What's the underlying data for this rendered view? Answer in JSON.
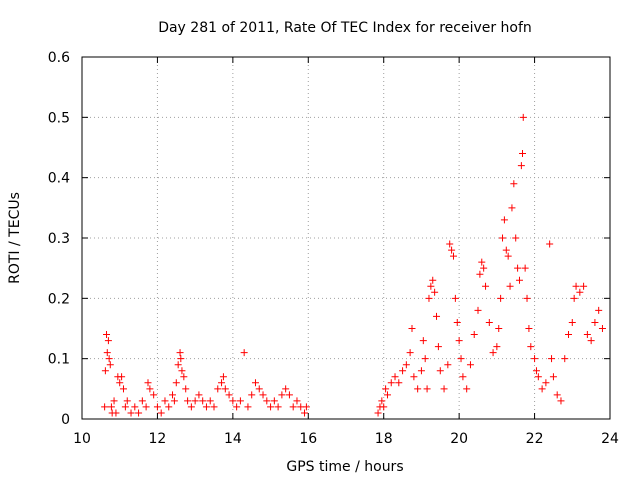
{
  "chart_data": {
    "type": "scatter",
    "title": "Day 281 of 2011, Rate Of TEC Index for receiver hofn",
    "xlabel": "GPS time / hours",
    "ylabel": "ROTI / TECUs",
    "xlim": [
      10,
      24
    ],
    "ylim": [
      0,
      0.6
    ],
    "xticks": [
      "10",
      "12",
      "14",
      "16",
      "18",
      "20",
      "22",
      "24"
    ],
    "yticks": [
      "0",
      "0.1",
      "0.2",
      "0.3",
      "0.4",
      "0.5",
      "0.6"
    ],
    "grid": true,
    "marker": "+",
    "marker_color": "#ff0000",
    "series": [
      {
        "name": "ROTI",
        "points": [
          [
            10.6,
            0.02
          ],
          [
            10.62,
            0.08
          ],
          [
            10.65,
            0.14
          ],
          [
            10.67,
            0.11
          ],
          [
            10.7,
            0.13
          ],
          [
            10.72,
            0.1
          ],
          [
            10.75,
            0.09
          ],
          [
            10.78,
            0.02
          ],
          [
            10.8,
            0.01
          ],
          [
            10.85,
            0.03
          ],
          [
            10.9,
            0.01
          ],
          [
            10.95,
            0.07
          ],
          [
            11.0,
            0.06
          ],
          [
            11.05,
            0.07
          ],
          [
            11.1,
            0.05
          ],
          [
            11.15,
            0.02
          ],
          [
            11.2,
            0.03
          ],
          [
            11.3,
            0.01
          ],
          [
            11.4,
            0.02
          ],
          [
            11.5,
            0.01
          ],
          [
            11.6,
            0.03
          ],
          [
            11.7,
            0.02
          ],
          [
            11.75,
            0.06
          ],
          [
            11.8,
            0.05
          ],
          [
            11.9,
            0.04
          ],
          [
            12.0,
            0.02
          ],
          [
            12.1,
            0.01
          ],
          [
            12.2,
            0.03
          ],
          [
            12.3,
            0.02
          ],
          [
            12.4,
            0.04
          ],
          [
            12.45,
            0.03
          ],
          [
            12.5,
            0.06
          ],
          [
            12.55,
            0.09
          ],
          [
            12.6,
            0.11
          ],
          [
            12.62,
            0.1
          ],
          [
            12.65,
            0.08
          ],
          [
            12.7,
            0.07
          ],
          [
            12.75,
            0.05
          ],
          [
            12.8,
            0.03
          ],
          [
            12.9,
            0.02
          ],
          [
            13.0,
            0.03
          ],
          [
            13.1,
            0.04
          ],
          [
            13.2,
            0.03
          ],
          [
            13.3,
            0.02
          ],
          [
            13.4,
            0.03
          ],
          [
            13.5,
            0.02
          ],
          [
            13.6,
            0.05
          ],
          [
            13.7,
            0.06
          ],
          [
            13.75,
            0.07
          ],
          [
            13.8,
            0.05
          ],
          [
            13.9,
            0.04
          ],
          [
            14.0,
            0.03
          ],
          [
            14.1,
            0.02
          ],
          [
            14.2,
            0.03
          ],
          [
            14.3,
            0.11
          ],
          [
            14.4,
            0.02
          ],
          [
            14.5,
            0.04
          ],
          [
            14.6,
            0.06
          ],
          [
            14.7,
            0.05
          ],
          [
            14.8,
            0.04
          ],
          [
            14.9,
            0.03
          ],
          [
            15.0,
            0.02
          ],
          [
            15.1,
            0.03
          ],
          [
            15.2,
            0.02
          ],
          [
            15.3,
            0.04
          ],
          [
            15.4,
            0.05
          ],
          [
            15.5,
            0.04
          ],
          [
            15.6,
            0.02
          ],
          [
            15.7,
            0.03
          ],
          [
            15.8,
            0.02
          ],
          [
            15.9,
            0.01
          ],
          [
            15.95,
            0.02
          ],
          [
            17.85,
            0.01
          ],
          [
            17.9,
            0.02
          ],
          [
            17.95,
            0.03
          ],
          [
            18.0,
            0.02
          ],
          [
            18.05,
            0.05
          ],
          [
            18.1,
            0.04
          ],
          [
            18.2,
            0.06
          ],
          [
            18.3,
            0.07
          ],
          [
            18.4,
            0.06
          ],
          [
            18.5,
            0.08
          ],
          [
            18.6,
            0.09
          ],
          [
            18.7,
            0.11
          ],
          [
            18.75,
            0.15
          ],
          [
            18.8,
            0.07
          ],
          [
            18.9,
            0.05
          ],
          [
            19.0,
            0.08
          ],
          [
            19.05,
            0.13
          ],
          [
            19.1,
            0.1
          ],
          [
            19.15,
            0.05
          ],
          [
            19.2,
            0.2
          ],
          [
            19.25,
            0.22
          ],
          [
            19.3,
            0.23
          ],
          [
            19.35,
            0.21
          ],
          [
            19.4,
            0.17
          ],
          [
            19.45,
            0.12
          ],
          [
            19.5,
            0.08
          ],
          [
            19.6,
            0.05
          ],
          [
            19.7,
            0.09
          ],
          [
            19.75,
            0.29
          ],
          [
            19.8,
            0.28
          ],
          [
            19.85,
            0.27
          ],
          [
            19.9,
            0.2
          ],
          [
            19.95,
            0.16
          ],
          [
            20.0,
            0.13
          ],
          [
            20.05,
            0.1
          ],
          [
            20.1,
            0.07
          ],
          [
            20.2,
            0.05
          ],
          [
            20.3,
            0.09
          ],
          [
            20.4,
            0.14
          ],
          [
            20.5,
            0.18
          ],
          [
            20.55,
            0.24
          ],
          [
            20.6,
            0.26
          ],
          [
            20.65,
            0.25
          ],
          [
            20.7,
            0.22
          ],
          [
            20.8,
            0.16
          ],
          [
            20.9,
            0.11
          ],
          [
            21.0,
            0.12
          ],
          [
            21.05,
            0.15
          ],
          [
            21.1,
            0.2
          ],
          [
            21.15,
            0.3
          ],
          [
            21.2,
            0.33
          ],
          [
            21.25,
            0.28
          ],
          [
            21.3,
            0.27
          ],
          [
            21.35,
            0.22
          ],
          [
            21.4,
            0.35
          ],
          [
            21.45,
            0.39
          ],
          [
            21.5,
            0.3
          ],
          [
            21.55,
            0.25
          ],
          [
            21.6,
            0.23
          ],
          [
            21.65,
            0.42
          ],
          [
            21.68,
            0.44
          ],
          [
            21.7,
            0.5
          ],
          [
            21.75,
            0.25
          ],
          [
            21.8,
            0.2
          ],
          [
            21.85,
            0.15
          ],
          [
            21.9,
            0.12
          ],
          [
            22.0,
            0.1
          ],
          [
            22.05,
            0.08
          ],
          [
            22.1,
            0.07
          ],
          [
            22.2,
            0.05
          ],
          [
            22.3,
            0.06
          ],
          [
            22.4,
            0.29
          ],
          [
            22.45,
            0.1
          ],
          [
            22.5,
            0.07
          ],
          [
            22.6,
            0.04
          ],
          [
            22.7,
            0.03
          ],
          [
            22.8,
            0.1
          ],
          [
            22.9,
            0.14
          ],
          [
            23.0,
            0.16
          ],
          [
            23.05,
            0.2
          ],
          [
            23.1,
            0.22
          ],
          [
            23.2,
            0.21
          ],
          [
            23.3,
            0.22
          ],
          [
            23.4,
            0.14
          ],
          [
            23.5,
            0.13
          ],
          [
            23.6,
            0.16
          ],
          [
            23.7,
            0.18
          ],
          [
            23.8,
            0.15
          ]
        ]
      }
    ]
  }
}
